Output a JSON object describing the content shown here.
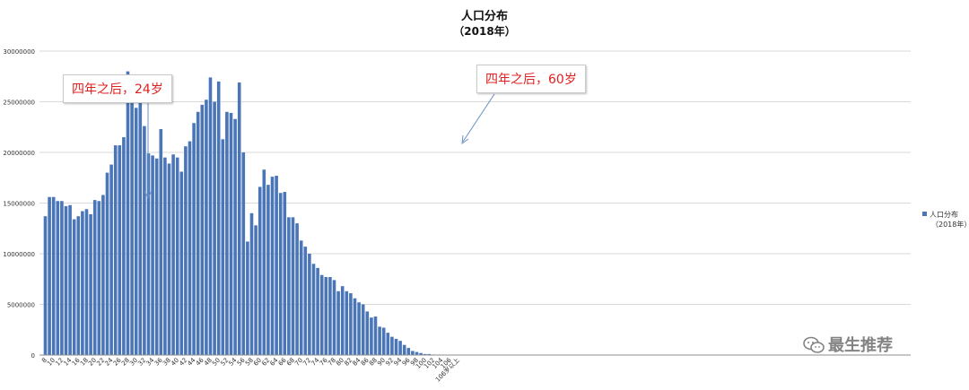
{
  "chart_data": {
    "type": "bar",
    "title": "人口分布",
    "subtitle": "（2018年）",
    "legend": {
      "label": "人口分布",
      "sublabel": "（2018年）",
      "position": "right",
      "color": "#4a76b8"
    },
    "ylim": [
      0,
      30000000
    ],
    "yticks": [
      "0",
      "5000000",
      "10000000",
      "15000000",
      "20000000",
      "25000000",
      "30000000"
    ],
    "xtick_labels": [
      "8",
      "10",
      "12",
      "14",
      "16",
      "18",
      "20",
      "22",
      "24",
      "26",
      "28",
      "30",
      "32",
      "34",
      "36",
      "38",
      "40",
      "42",
      "44",
      "46",
      "48",
      "50",
      "52",
      "54",
      "56",
      "58",
      "60",
      "62",
      "64",
      "66",
      "68",
      "70",
      "72",
      "74",
      "76",
      "78",
      "80",
      "82",
      "84",
      "86",
      "88",
      "90",
      "92",
      "94",
      "96",
      "98",
      "100",
      "102",
      "104",
      "106",
      "106岁以上"
    ],
    "values": [
      13700000,
      15600000,
      15600000,
      15200000,
      15200000,
      14700000,
      14800000,
      13400000,
      13700000,
      14200000,
      14400000,
      13900000,
      15300000,
      15200000,
      15800000,
      18000000,
      18800000,
      20700000,
      20700000,
      21500000,
      28000000,
      26500000,
      24400000,
      25600000,
      22600000,
      19900000,
      19700000,
      19400000,
      22300000,
      19500000,
      18900000,
      19800000,
      19500000,
      18100000,
      20600000,
      21100000,
      22900000,
      24000000,
      24700000,
      25200000,
      27400000,
      25000000,
      27000000,
      21300000,
      24000000,
      23900000,
      23300000,
      26900000,
      20000000,
      11200000,
      14000000,
      12800000,
      16600000,
      18300000,
      16800000,
      17600000,
      17700000,
      16000000,
      16100000,
      13600000,
      13600000,
      13000000,
      11300000,
      10700000,
      10000000,
      9000000,
      8600000,
      7900000,
      7700000,
      7700000,
      7400000,
      6300000,
      6800000,
      6300000,
      6100000,
      5600000,
      5200000,
      5000000,
      4300000,
      3700000,
      3800000,
      2800000,
      2700000,
      2200000,
      1800000,
      1600000,
      1400000,
      1000000,
      700000,
      400000,
      300000,
      200000,
      100000,
      100000,
      50000,
      30000,
      20000,
      10000,
      5000,
      3000
    ]
  },
  "annotations": [
    {
      "text": "四年之后，24岁"
    },
    {
      "text": "四年之后，60岁"
    }
  ],
  "watermark": "最生推荐"
}
